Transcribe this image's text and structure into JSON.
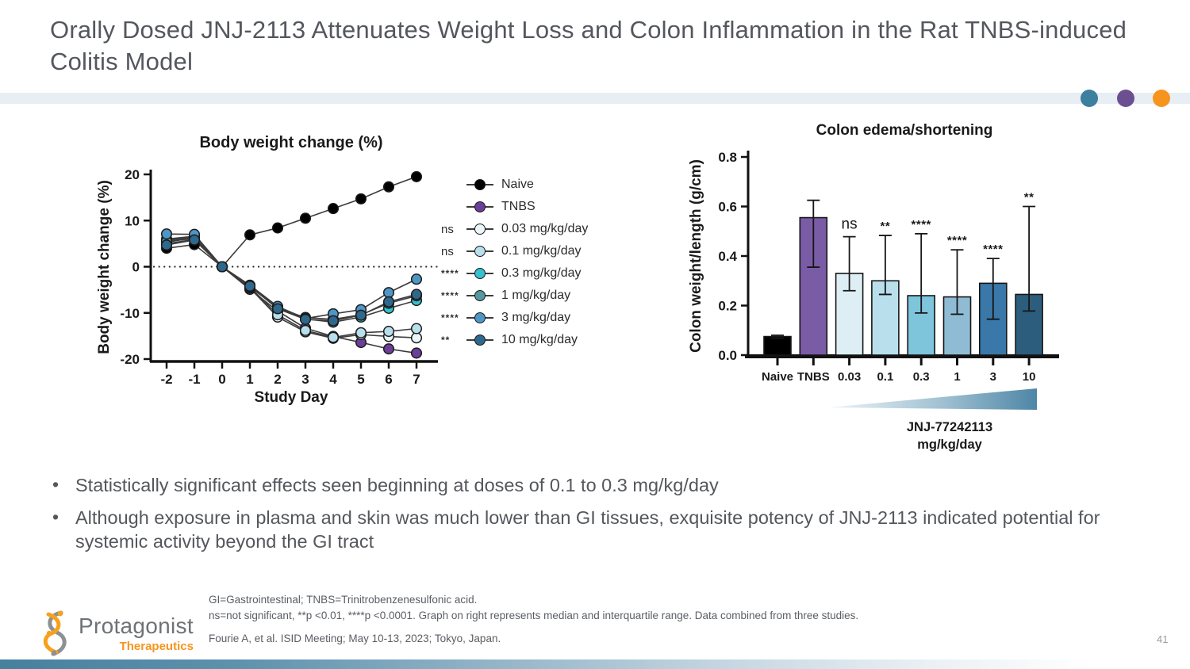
{
  "slide": {
    "title": "Orally Dosed JNJ-2113 Attenuates Weight Loss and Colon Inflammation in the Rat TNBS-induced Colitis Model",
    "page_number": "41",
    "accent": {
      "header_bar": "#E7EEF4",
      "dot_teal": "#3D7F9F",
      "dot_purple": "#6B4F91",
      "dot_orange": "#F7941D",
      "bottom_gradient_start": "#46809F"
    }
  },
  "logo": {
    "name": "Protagonist",
    "sub": "Therapeutics"
  },
  "bullets": [
    "Statistically significant effects seen beginning at doses of 0.1 to 0.3 mg/kg/day",
    "Although exposure in plasma and skin was much lower than GI tissues, exquisite potency of JNJ-2113 indicated potential for systemic activity beyond the GI tract"
  ],
  "footnotes": {
    "line1": "GI=Gastrointestinal; TNBS=Trinitrobenzenesulfonic acid.",
    "line2": "ns=not significant, **p <0.01, ****p <0.0001. Graph on right represents median and interquartile range. Data combined from three studies.",
    "citation": "Fourie A, et al. ISID Meeting; May 10-13, 2023; Tokyo, Japan."
  },
  "chart_data": [
    {
      "type": "line",
      "title": "Body weight change (%)",
      "xlabel": "Study Day",
      "ylabel": "Body weight change (%)",
      "x": [
        -2,
        -1,
        0,
        1,
        2,
        3,
        4,
        5,
        6,
        7
      ],
      "ylim": [
        -20,
        20
      ],
      "yticks": [
        20,
        10,
        0,
        -10,
        -20
      ],
      "zero_line": "dotted",
      "legend_position": "right",
      "series": [
        {
          "name": "Naive",
          "sig": "",
          "color": "#000000",
          "values": [
            4.0,
            4.8,
            0,
            6.9,
            8.4,
            10.5,
            12.6,
            14.7,
            17.3,
            19.5
          ]
        },
        {
          "name": "TNBS",
          "sig": "",
          "color": "#6C3E98",
          "values": [
            5.3,
            6.3,
            0,
            -4.9,
            -9.6,
            -13.3,
            -15.1,
            -16.4,
            -17.8,
            -18.7
          ]
        },
        {
          "name": "0.03 mg/kg/day",
          "sig": "ns",
          "color": "#EAF6F8",
          "values": [
            5.7,
            6.4,
            0,
            -4.6,
            -10.9,
            -14.1,
            -15.5,
            -14.7,
            -15.1,
            -15.4
          ]
        },
        {
          "name": "0.1 mg/kg/day",
          "sig": "ns",
          "color": "#B9DFEC",
          "values": [
            6.0,
            6.6,
            0,
            -4.4,
            -10.4,
            -13.8,
            -15.3,
            -14.3,
            -14.0,
            -13.4
          ]
        },
        {
          "name": "0.3 mg/kg/day",
          "sig": "****",
          "color": "#35C1CE",
          "values": [
            5.0,
            5.9,
            0,
            -4.1,
            -8.8,
            -11.3,
            -12.0,
            -10.9,
            -9.0,
            -7.3
          ]
        },
        {
          "name": "1 mg/kg/day",
          "sig": "****",
          "color": "#55989E",
          "values": [
            5.5,
            6.1,
            0,
            -4.3,
            -9.0,
            -11.0,
            -11.4,
            -10.4,
            -7.9,
            -6.3
          ]
        },
        {
          "name": "3 mg/kg/day",
          "sig": "****",
          "color": "#4E96C6",
          "values": [
            7.1,
            7.0,
            0,
            -4.0,
            -8.6,
            -11.2,
            -10.2,
            -9.3,
            -5.6,
            -2.7
          ]
        },
        {
          "name": "10 mg/kg/day",
          "sig": "**",
          "color": "#2E688C",
          "values": [
            4.7,
            5.8,
            0,
            -4.2,
            -9.1,
            -11.4,
            -11.7,
            -10.5,
            -7.6,
            -6.0
          ]
        }
      ]
    },
    {
      "type": "bar",
      "title": "Colon edema/shortening",
      "ylabel": "Colon weight/length (g/cm)",
      "ylim": [
        0,
        0.8
      ],
      "yticks": [
        0.0,
        0.2,
        0.4,
        0.6,
        0.8
      ],
      "categories": [
        "Naive",
        "TNBS",
        "0.03",
        "0.1",
        "0.3",
        "1",
        "3",
        "10"
      ],
      "values": [
        0.075,
        0.555,
        0.33,
        0.3,
        0.24,
        0.235,
        0.29,
        0.245
      ],
      "error_low": [
        0.068,
        0.355,
        0.26,
        0.245,
        0.17,
        0.165,
        0.145,
        0.178
      ],
      "error_high": [
        0.08,
        0.625,
        0.478,
        0.483,
        0.49,
        0.425,
        0.39,
        0.6
      ],
      "sig_labels": [
        "",
        "",
        "ns",
        "**",
        "****",
        "****",
        "****",
        "**"
      ],
      "bar_colors": [
        "#000000",
        "#7A5CA6",
        "#DDEFF5",
        "#B9DFEC",
        "#7EC4DB",
        "#8FBCD4",
        "#3978A8",
        "#2C5D7C"
      ],
      "dose_wedge_label": "JNJ-77242113",
      "dose_wedge_sublabel": "mg/kg/day"
    }
  ]
}
